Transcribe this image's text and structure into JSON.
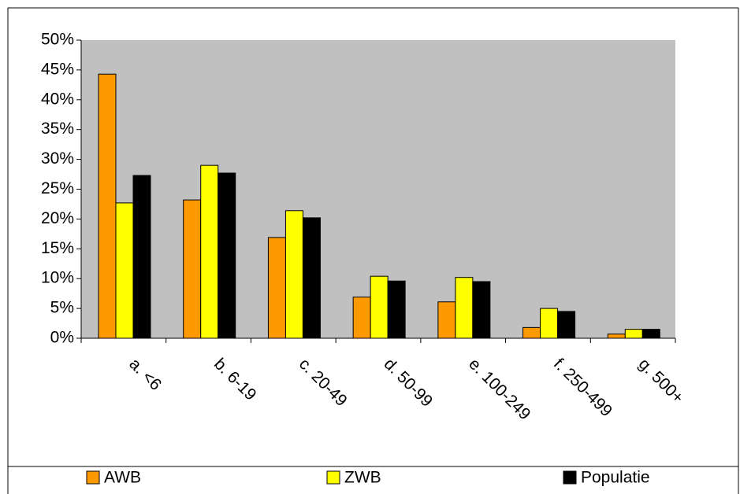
{
  "chart_data": {
    "type": "bar",
    "categories": [
      "a. <6",
      "b. 6-19",
      "c. 20-49",
      "d. 50-99",
      "e. 100-249",
      "f. 250-499",
      "g. 500+"
    ],
    "series": [
      {
        "name": "AWB",
        "color": "#ff9900",
        "values": [
          44.3,
          23.2,
          16.9,
          6.9,
          6.1,
          1.8,
          0.7
        ]
      },
      {
        "name": "ZWB",
        "color": "#ffff00",
        "values": [
          22.7,
          29.0,
          21.4,
          10.4,
          10.2,
          5.0,
          1.5
        ]
      },
      {
        "name": "Populatie",
        "color": "#000000",
        "values": [
          27.3,
          27.7,
          20.2,
          9.6,
          9.5,
          4.5,
          1.5
        ]
      }
    ],
    "ylim": [
      0,
      50
    ],
    "yticks": [
      {
        "value": 0,
        "label": "0%"
      },
      {
        "value": 5,
        "label": "5%"
      },
      {
        "value": 10,
        "label": "10%"
      },
      {
        "value": 15,
        "label": "15%"
      },
      {
        "value": 20,
        "label": "20%"
      },
      {
        "value": 25,
        "label": "25%"
      },
      {
        "value": 30,
        "label": "30%"
      },
      {
        "value": 35,
        "label": "35%"
      },
      {
        "value": 40,
        "label": "40%"
      },
      {
        "value": 45,
        "label": "45%"
      },
      {
        "value": 50,
        "label": "50%"
      }
    ],
    "plot_background": "#c0c0c0",
    "legend": "bottom"
  }
}
